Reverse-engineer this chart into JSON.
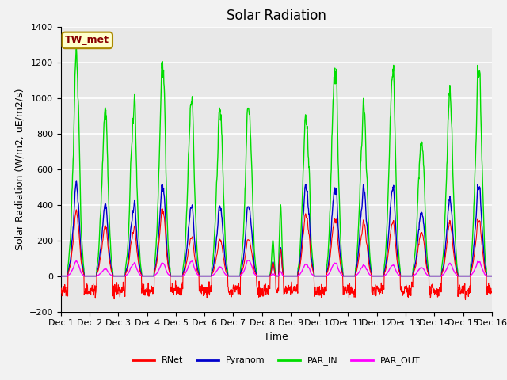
{
  "title": "Solar Radiation",
  "ylabel": "Solar Radiation (W/m2, uE/m2/s)",
  "xlabel": "Time",
  "n_days": 15,
  "ylim": [
    -200,
    1400
  ],
  "yticks": [
    -200,
    0,
    200,
    400,
    600,
    800,
    1000,
    1200,
    1400
  ],
  "xtick_labels": [
    "Dec 1",
    "Dec 2",
    "Dec 3",
    "Dec 4",
    "Dec 5",
    "Dec 6",
    "Dec 7",
    "Dec 8",
    "Dec 9",
    "Dec 10",
    "Dec 11",
    "Dec 12",
    "Dec 13",
    "Dec 14",
    "Dec 15",
    "Dec 16"
  ],
  "colors": {
    "RNet": "#ff0000",
    "Pyranom": "#0000cc",
    "PAR_IN": "#00dd00",
    "PAR_OUT": "#ff00ff"
  },
  "annotation_text": "TW_met",
  "annotation_facecolor": "#ffffcc",
  "annotation_edgecolor": "#aa8800",
  "axes_facecolor": "#e8e8e8",
  "grid_color": "#ffffff",
  "fig_facecolor": "#f2f2f2",
  "title_fontsize": 12,
  "label_fontsize": 9,
  "tick_fontsize": 8,
  "par_in_peaks": [
    1200,
    930,
    940,
    1150,
    960,
    910,
    970,
    400,
    880,
    1200,
    950,
    1140,
    800,
    1030,
    1150
  ],
  "pyranom_peaks": [
    500,
    400,
    390,
    490,
    380,
    380,
    400,
    160,
    500,
    510,
    490,
    490,
    380,
    430,
    500
  ],
  "rnet_day_peaks": [
    350,
    280,
    260,
    360,
    210,
    200,
    210,
    150,
    340,
    330,
    300,
    300,
    260,
    300,
    310
  ],
  "rnet_night": [
    -80,
    -80,
    -80,
    -80,
    -80,
    -80,
    -80,
    -80,
    -80,
    -80,
    -80,
    -80,
    -80,
    -80,
    -80
  ],
  "par_out_peaks": [
    80,
    40,
    70,
    70,
    80,
    50,
    90,
    25,
    65,
    75,
    60,
    60,
    50,
    70,
    80
  ]
}
